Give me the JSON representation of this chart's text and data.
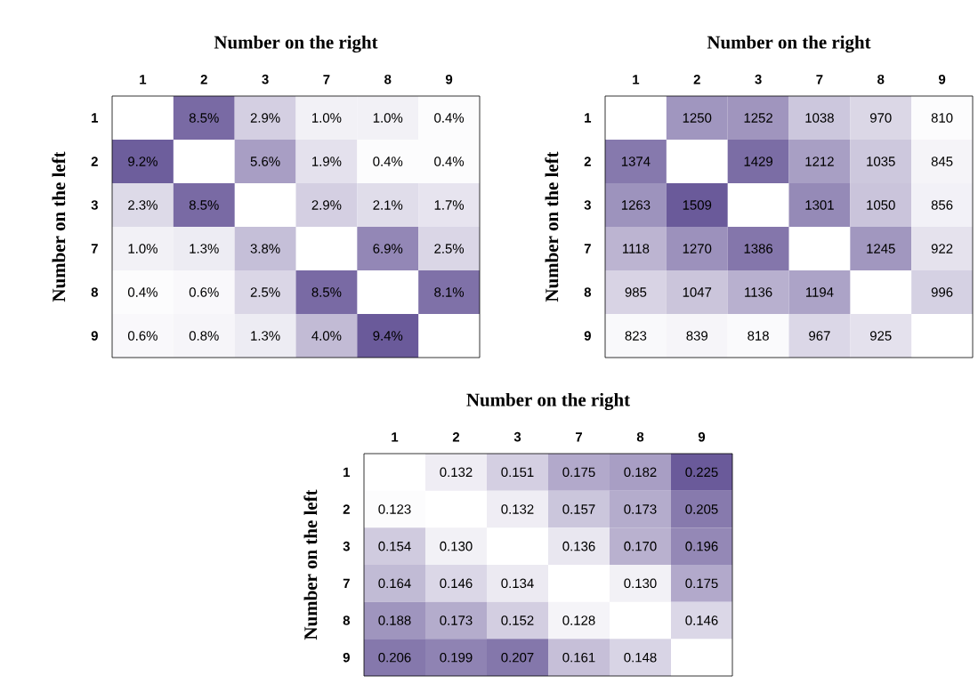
{
  "chart_data": [
    {
      "type": "heatmap",
      "xlabel": "Number on the right",
      "ylabel": "Number on the left",
      "categories": [
        "1",
        "2",
        "3",
        "7",
        "8",
        "9"
      ],
      "y_categories": [
        "1",
        "2",
        "3",
        "7",
        "8",
        "9"
      ],
      "cells": [
        [
          null,
          8.5,
          2.9,
          1.0,
          1.0,
          0.4
        ],
        [
          9.2,
          null,
          5.6,
          1.9,
          0.4,
          0.4
        ],
        [
          2.3,
          8.5,
          null,
          2.9,
          2.1,
          1.7
        ],
        [
          1.0,
          1.3,
          3.8,
          null,
          6.9,
          2.5
        ],
        [
          0.4,
          0.6,
          2.5,
          8.5,
          null,
          8.1
        ],
        [
          0.6,
          0.8,
          1.3,
          4.0,
          9.4,
          null
        ]
      ],
      "cell_labels": [
        [
          null,
          "8.5%",
          "2.9%",
          "1.0%",
          "1.0%",
          "0.4%"
        ],
        [
          "9.2%",
          null,
          "5.6%",
          "1.9%",
          "0.4%",
          "0.4%"
        ],
        [
          "2.3%",
          "8.5%",
          null,
          "2.9%",
          "2.1%",
          "1.7%"
        ],
        [
          "1.0%",
          "1.3%",
          "3.8%",
          null,
          "6.9%",
          "2.5%"
        ],
        [
          "0.4%",
          "0.6%",
          "2.5%",
          "8.5%",
          null,
          "8.1%"
        ],
        [
          "0.6%",
          "0.8%",
          "1.3%",
          "4.0%",
          "9.4%",
          null
        ]
      ]
    },
    {
      "type": "heatmap",
      "xlabel": "Number on the right",
      "ylabel": "Number on the left",
      "categories": [
        "1",
        "2",
        "3",
        "7",
        "8",
        "9"
      ],
      "y_categories": [
        "1",
        "2",
        "3",
        "7",
        "8",
        "9"
      ],
      "cells": [
        [
          null,
          1250,
          1252,
          1038,
          970,
          810
        ],
        [
          1374,
          null,
          1429,
          1212,
          1035,
          845
        ],
        [
          1263,
          1509,
          null,
          1301,
          1050,
          856
        ],
        [
          1118,
          1270,
          1386,
          null,
          1245,
          922
        ],
        [
          985,
          1047,
          1136,
          1194,
          null,
          996
        ],
        [
          823,
          839,
          818,
          967,
          925,
          null
        ]
      ],
      "cell_labels": [
        [
          null,
          "1250",
          "1252",
          "1038",
          "970",
          "810"
        ],
        [
          "1374",
          null,
          "1429",
          "1212",
          "1035",
          "845"
        ],
        [
          "1263",
          "1509",
          null,
          "1301",
          "1050",
          "856"
        ],
        [
          "1118",
          "1270",
          "1386",
          null,
          "1245",
          "922"
        ],
        [
          "985",
          "1047",
          "1136",
          "1194",
          null,
          "996"
        ],
        [
          "823",
          "839",
          "818",
          "967",
          "925",
          null
        ]
      ]
    },
    {
      "type": "heatmap",
      "xlabel": "Number on the right",
      "ylabel": "Number on the left",
      "categories": [
        "1",
        "2",
        "3",
        "7",
        "8",
        "9"
      ],
      "y_categories": [
        "1",
        "2",
        "3",
        "7",
        "8",
        "9"
      ],
      "cells": [
        [
          null,
          0.132,
          0.151,
          0.175,
          0.182,
          0.225
        ],
        [
          0.123,
          null,
          0.132,
          0.157,
          0.173,
          0.205
        ],
        [
          0.154,
          0.13,
          null,
          0.136,
          0.17,
          0.196
        ],
        [
          0.164,
          0.146,
          0.134,
          null,
          0.13,
          0.175
        ],
        [
          0.188,
          0.173,
          0.152,
          0.128,
          null,
          0.146
        ],
        [
          0.206,
          0.199,
          0.207,
          0.161,
          0.148,
          null
        ]
      ],
      "cell_labels": [
        [
          null,
          "0.132",
          "0.151",
          "0.175",
          "0.182",
          "0.225"
        ],
        [
          "0.123",
          null,
          "0.132",
          "0.157",
          "0.173",
          "0.205"
        ],
        [
          "0.154",
          "0.130",
          null,
          "0.136",
          "0.170",
          "0.196"
        ],
        [
          "0.164",
          "0.146",
          "0.134",
          null,
          "0.130",
          "0.175"
        ],
        [
          "0.188",
          "0.173",
          "0.152",
          "0.128",
          null,
          "0.146"
        ],
        [
          "0.206",
          "0.199",
          "0.207",
          "0.161",
          "0.148",
          null
        ]
      ]
    }
  ]
}
